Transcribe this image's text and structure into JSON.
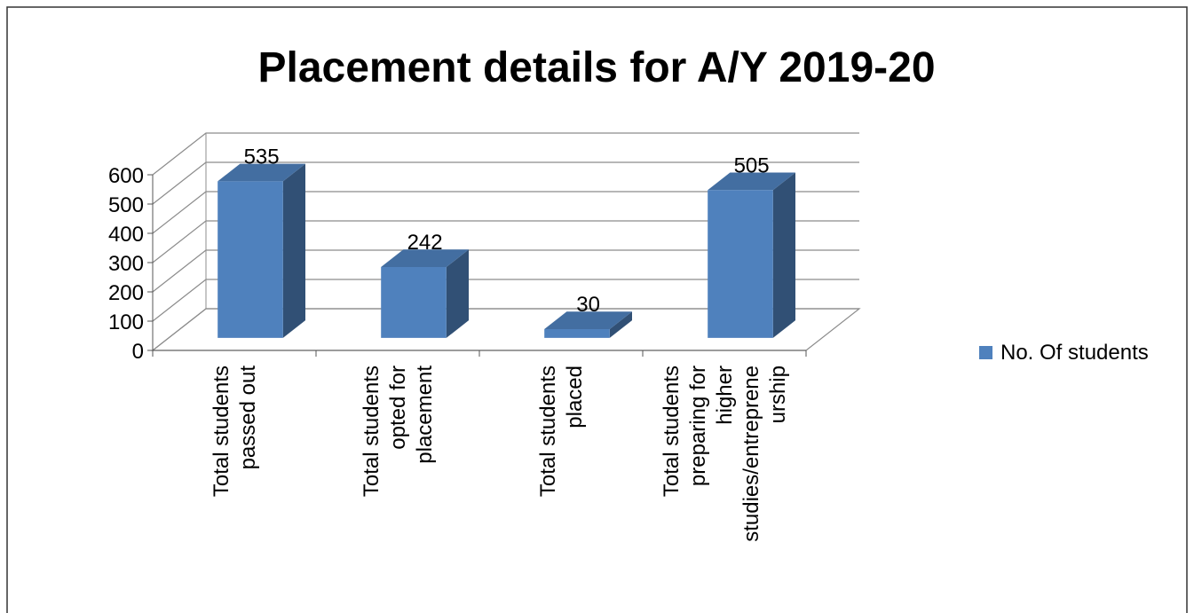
{
  "chart_data": {
    "type": "bar3d",
    "title": "Placement details for A/Y 2019-20",
    "categories": [
      "Total students passed out",
      "Total students opted for placement",
      "Total students placed",
      "Total students preparing for higher studies/entrepreneurship"
    ],
    "series": [
      {
        "name": "No. Of students",
        "color": "#4f81bd",
        "values": [
          535,
          242,
          30,
          505
        ]
      }
    ],
    "ylim": [
      0,
      600
    ],
    "yticks": [
      0,
      100,
      200,
      300,
      400,
      500,
      600
    ],
    "grid": true,
    "legend": "right"
  }
}
